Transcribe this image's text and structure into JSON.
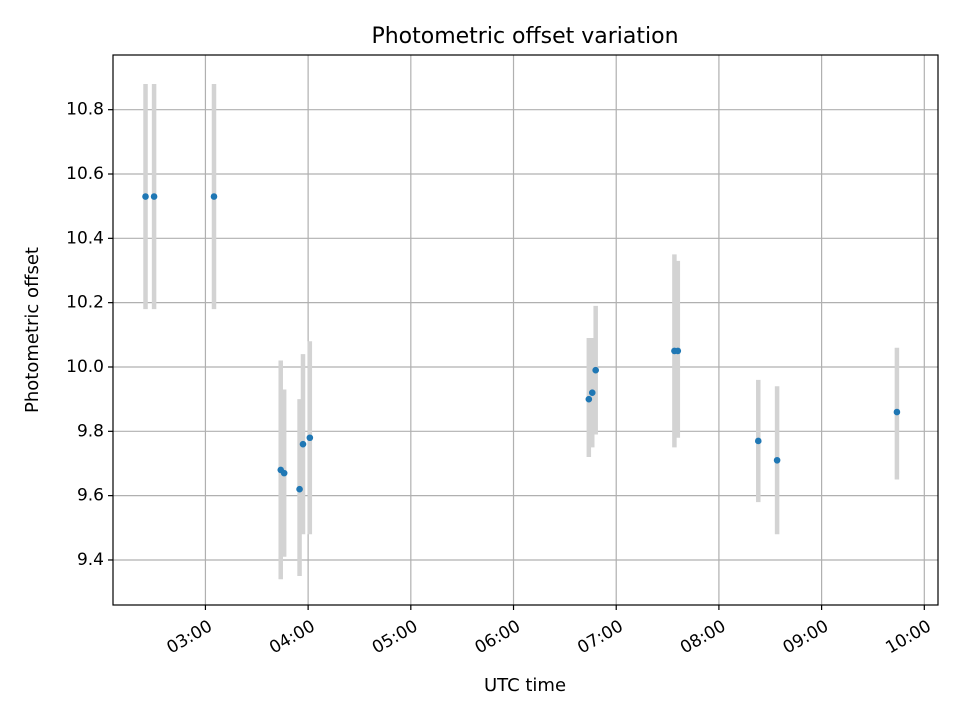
{
  "chart_data": {
    "type": "scatter",
    "title": "Photometric offset variation",
    "xlabel": "UTC time",
    "ylabel": "Photometric offset",
    "x_unit": "UTC time (HH:MM)",
    "xlim": [
      "02:06",
      "10:08"
    ],
    "ylim": [
      9.26,
      10.97
    ],
    "grid": true,
    "x_ticks": [
      "03:00",
      "04:00",
      "05:00",
      "06:00",
      "07:00",
      "08:00",
      "09:00",
      "10:00"
    ],
    "y_ticks": [
      9.4,
      9.6,
      9.8,
      10.0,
      10.2,
      10.4,
      10.6,
      10.8
    ],
    "colors": {
      "marker": "#1f77b4",
      "errorbar": "#d3d3d3",
      "grid": "#b0b0b0"
    },
    "points": [
      {
        "time": "02:25",
        "y": 10.53,
        "y_low": 10.18,
        "y_high": 10.88
      },
      {
        "time": "02:30",
        "y": 10.53,
        "y_low": 10.18,
        "y_high": 10.88
      },
      {
        "time": "03:05",
        "y": 10.53,
        "y_low": 10.18,
        "y_high": 10.88
      },
      {
        "time": "03:44",
        "y": 9.68,
        "y_low": 9.34,
        "y_high": 10.02
      },
      {
        "time": "03:46",
        "y": 9.67,
        "y_low": 9.41,
        "y_high": 9.93
      },
      {
        "time": "03:55",
        "y": 9.62,
        "y_low": 9.35,
        "y_high": 9.9
      },
      {
        "time": "03:57",
        "y": 9.76,
        "y_low": 9.48,
        "y_high": 10.04
      },
      {
        "time": "04:01",
        "y": 9.78,
        "y_low": 9.48,
        "y_high": 10.08
      },
      {
        "time": "06:44",
        "y": 9.9,
        "y_low": 9.72,
        "y_high": 10.09
      },
      {
        "time": "06:46",
        "y": 9.92,
        "y_low": 9.75,
        "y_high": 10.09
      },
      {
        "time": "06:48",
        "y": 9.99,
        "y_low": 9.79,
        "y_high": 10.19
      },
      {
        "time": "07:34",
        "y": 10.05,
        "y_low": 9.75,
        "y_high": 10.35
      },
      {
        "time": "07:36",
        "y": 10.05,
        "y_low": 9.78,
        "y_high": 10.33
      },
      {
        "time": "08:23",
        "y": 9.77,
        "y_low": 9.58,
        "y_high": 9.96
      },
      {
        "time": "08:34",
        "y": 9.71,
        "y_low": 9.48,
        "y_high": 9.94
      },
      {
        "time": "09:44",
        "y": 9.86,
        "y_low": 9.65,
        "y_high": 10.06
      }
    ]
  }
}
